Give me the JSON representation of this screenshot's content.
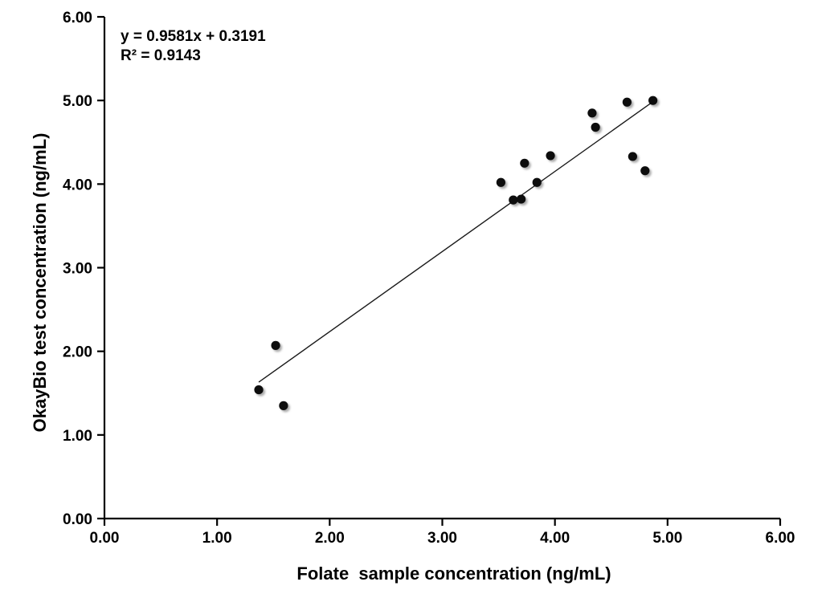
{
  "chart_data": {
    "type": "scatter",
    "title": "",
    "xlabel": "Folate  sample concentration (ng/mL)",
    "ylabel": "OkayBio test concentration (ng/mL)",
    "xlim": [
      0,
      6
    ],
    "ylim": [
      0,
      6
    ],
    "xtick_values": [
      0,
      1,
      2,
      3,
      4,
      5,
      6
    ],
    "ytick_values": [
      0,
      1,
      2,
      3,
      4,
      5,
      6
    ],
    "xtick_labels": [
      "0.00",
      "1.00",
      "2.00",
      "3.00",
      "4.00",
      "5.00",
      "6.00"
    ],
    "ytick_labels": [
      "0.00",
      "1.00",
      "2.00",
      "3.00",
      "4.00",
      "5.00",
      "6.00"
    ],
    "grid": false,
    "legend": false,
    "annotation": {
      "equation": "y = 0.9581x + 0.3191",
      "r_squared": "R² = 0.9143"
    },
    "points": [
      [
        1.37,
        1.54
      ],
      [
        1.52,
        2.07
      ],
      [
        1.59,
        1.35
      ],
      [
        3.52,
        4.02
      ],
      [
        3.63,
        3.81
      ],
      [
        3.7,
        3.82
      ],
      [
        3.73,
        4.25
      ],
      [
        3.84,
        4.02
      ],
      [
        3.96,
        4.34
      ],
      [
        4.33,
        4.85
      ],
      [
        4.36,
        4.68
      ],
      [
        4.64,
        4.98
      ],
      [
        4.69,
        4.33
      ],
      [
        4.8,
        4.16
      ],
      [
        4.87,
        5.0
      ]
    ],
    "trendline": {
      "slope": 0.9581,
      "intercept": 0.3191,
      "x_start": 1.37,
      "x_end": 4.87
    },
    "colors": {
      "marker": "#0a0a0a",
      "trendline": "#1a1a1a",
      "axis": "#000000"
    }
  }
}
